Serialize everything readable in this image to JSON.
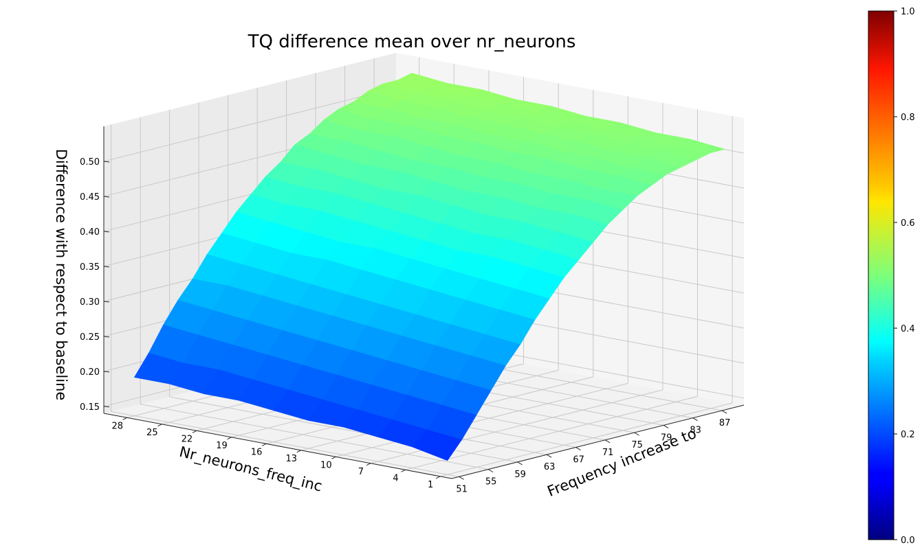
{
  "chart_data": {
    "type": "surface3d",
    "title": "TQ difference mean over nr_neurons",
    "xlabel": "Frequency increase to",
    "ylabel": "Nr_neurons_freq_inc",
    "zlabel": "Difference with respect to baseline",
    "x_ticks": [
      "51",
      "55",
      "59",
      "63",
      "67",
      "71",
      "75",
      "79",
      "83",
      "87"
    ],
    "y_ticks": [
      "1",
      "4",
      "7",
      "10",
      "13",
      "16",
      "19",
      "22",
      "25",
      "28"
    ],
    "z_ticks": [
      "0.15",
      "0.20",
      "0.25",
      "0.30",
      "0.35",
      "0.40",
      "0.45",
      "0.50"
    ],
    "xlim": [
      50,
      90
    ],
    "ylim": [
      0,
      30
    ],
    "zlim": [
      0.14,
      0.55
    ],
    "colormap": "jet",
    "colorbar": {
      "ticks": [
        "0.0",
        "0.2",
        "0.4",
        "0.6",
        "0.8",
        "1.0"
      ],
      "range": [
        0,
        1
      ]
    },
    "grid": true,
    "surface_x": [
      51,
      53,
      55,
      57,
      59,
      61,
      63,
      65,
      67,
      69,
      71,
      73,
      75,
      77,
      79,
      81,
      83,
      85,
      87,
      89
    ],
    "surface_y": [
      1,
      4,
      7,
      10,
      13,
      16,
      19,
      22,
      25,
      28
    ],
    "surface_z": [
      [
        0.16,
        0.185,
        0.215,
        0.245,
        0.275,
        0.3,
        0.33,
        0.355,
        0.38,
        0.4,
        0.42,
        0.44,
        0.455,
        0.47,
        0.48,
        0.49,
        0.495,
        0.5,
        0.505,
        0.505
      ],
      [
        0.17,
        0.19,
        0.22,
        0.25,
        0.28,
        0.305,
        0.335,
        0.36,
        0.385,
        0.405,
        0.425,
        0.445,
        0.46,
        0.47,
        0.485,
        0.49,
        0.5,
        0.505,
        0.505,
        0.51
      ],
      [
        0.175,
        0.195,
        0.225,
        0.255,
        0.285,
        0.31,
        0.34,
        0.365,
        0.39,
        0.41,
        0.43,
        0.445,
        0.46,
        0.475,
        0.485,
        0.495,
        0.5,
        0.505,
        0.51,
        0.51
      ],
      [
        0.18,
        0.2,
        0.23,
        0.26,
        0.29,
        0.315,
        0.345,
        0.37,
        0.39,
        0.41,
        0.43,
        0.45,
        0.465,
        0.475,
        0.49,
        0.495,
        0.505,
        0.51,
        0.51,
        0.515
      ],
      [
        0.18,
        0.205,
        0.235,
        0.265,
        0.295,
        0.32,
        0.35,
        0.375,
        0.395,
        0.415,
        0.435,
        0.45,
        0.465,
        0.48,
        0.49,
        0.5,
        0.505,
        0.51,
        0.515,
        0.515
      ],
      [
        0.185,
        0.21,
        0.24,
        0.27,
        0.3,
        0.325,
        0.355,
        0.38,
        0.4,
        0.42,
        0.44,
        0.455,
        0.47,
        0.48,
        0.495,
        0.5,
        0.51,
        0.515,
        0.515,
        0.52
      ],
      [
        0.19,
        0.215,
        0.245,
        0.275,
        0.305,
        0.33,
        0.36,
        0.38,
        0.405,
        0.425,
        0.44,
        0.46,
        0.47,
        0.485,
        0.495,
        0.505,
        0.51,
        0.515,
        0.52,
        0.52
      ],
      [
        0.19,
        0.22,
        0.25,
        0.28,
        0.31,
        0.335,
        0.36,
        0.385,
        0.41,
        0.43,
        0.445,
        0.46,
        0.475,
        0.49,
        0.5,
        0.505,
        0.515,
        0.52,
        0.52,
        0.525
      ],
      [
        0.195,
        0.22,
        0.255,
        0.285,
        0.315,
        0.34,
        0.365,
        0.39,
        0.41,
        0.43,
        0.45,
        0.465,
        0.48,
        0.49,
        0.5,
        0.51,
        0.515,
        0.52,
        0.525,
        0.525
      ],
      [
        0.195,
        0.225,
        0.26,
        0.29,
        0.315,
        0.345,
        0.37,
        0.395,
        0.415,
        0.435,
        0.45,
        0.47,
        0.48,
        0.495,
        0.505,
        0.51,
        0.52,
        0.525,
        0.525,
        0.53
      ]
    ]
  }
}
